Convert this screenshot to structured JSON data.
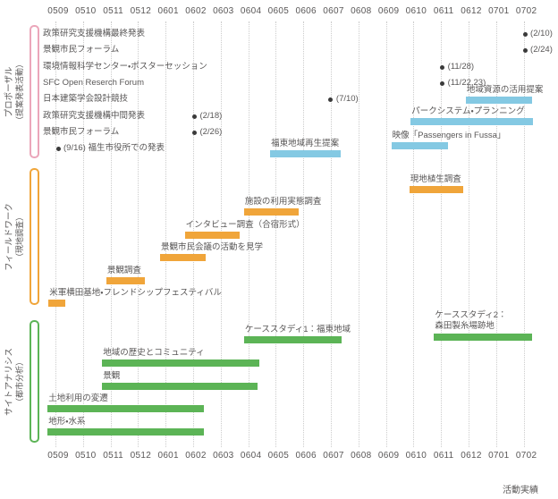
{
  "colors": {
    "bar_blue": "#84c9e3",
    "bar_orange": "#f0a53a",
    "bar_green": "#5cb456",
    "bracket_pink": "#eba6ba",
    "bracket_orange": "#f0a53a",
    "bracket_green": "#5cb456",
    "text": "#595757",
    "grid": "#cccccc",
    "marker": "#3a3a3a"
  },
  "footer": {
    "label": "活動実績"
  },
  "chart_data": {
    "type": "gantt",
    "x_axis": {
      "categories": [
        "0509",
        "0510",
        "0511",
        "0512",
        "0601",
        "0602",
        "0603",
        "0604",
        "0605",
        "0606",
        "0607",
        "0608",
        "0609",
        "0610",
        "0611",
        "0612",
        "0701",
        "0702"
      ],
      "shown_top": true,
      "shown_bottom": true,
      "grid": "dotted-vertical"
    },
    "groups": [
      {
        "id": "proposal",
        "name": "プロポーザル",
        "name_sub": "（提案発表活動）",
        "bar_color_key": "bar_blue",
        "bracket_color_key": "bracket_pink",
        "milestones": [
          {
            "row": 0,
            "label": "政策研究支援機構最終発表",
            "month": 16.95,
            "date": "(2/10)"
          },
          {
            "row": 1,
            "label": "景観市民フォーラム",
            "month": 16.95,
            "date": "(2/24)"
          },
          {
            "row": 2,
            "label": "環境情報科学センター・ポスターセッション",
            "month": 13.95,
            "date": "(11/28)"
          },
          {
            "row": 3,
            "label": "SFC Open Reserch Forum",
            "month": 13.95,
            "date": "(11/22,23)"
          },
          {
            "row": 4,
            "label": "日本建築学会設計競技",
            "month": 9.9,
            "date": "(7/10)"
          },
          {
            "row": 5,
            "label": "政策研究支援機構中間発表",
            "month": 4.95,
            "date": "(2/18)"
          },
          {
            "row": 6,
            "label": "景観市民フォーラム",
            "month": 4.95,
            "date": "(2/26)"
          },
          {
            "row": 7,
            "label": "",
            "month": 0,
            "date": "(9/16) 福生市役所での発表"
          }
        ],
        "bars": [
          {
            "row": 4.02,
            "label": "地域資源の活用提案",
            "start": 14.8,
            "end": 17.2
          },
          {
            "row": 5.33,
            "label": "パークシステム・プランニング",
            "start": 12.8,
            "end": 17.25
          },
          {
            "row": 6.83,
            "label": "映像「Passengers in Fussa」",
            "start": 12.1,
            "end": 14.15
          },
          {
            "row": 7.31,
            "label": "福東地域再生提案",
            "start": 7.7,
            "end": 10.25
          }
        ]
      },
      {
        "id": "fieldwork",
        "name": "フィールドワーク",
        "name_sub": "（現地調査）",
        "bar_color_key": "bar_orange",
        "bracket_color_key": "bracket_orange",
        "milestones": [],
        "bars": [
          {
            "row": 0,
            "label": "現地植生調査",
            "start": 12.75,
            "end": 14.7
          },
          {
            "row": 1,
            "label": "施設の利用実態調査",
            "start": 6.75,
            "end": 8.75
          },
          {
            "row": 2,
            "label": "インタビュー調査（合宿形式）",
            "start": 4.6,
            "end": 6.6
          },
          {
            "row": 3,
            "label": "景観市民会議の活動を見学",
            "start": 3.7,
            "end": 5.35
          },
          {
            "row": 4,
            "label": "景観調査",
            "start": 1.75,
            "end": 3.15
          },
          {
            "row": 5,
            "label": "米軍横田基地・フレンドシップフェスティバル",
            "start": -0.35,
            "end": 0.25
          }
        ]
      },
      {
        "id": "site_analysis",
        "name": "サイトアナリシス",
        "name_sub": "（都市分析）",
        "bar_color_key": "bar_green",
        "bracket_color_key": "bracket_green",
        "milestones": [],
        "bars": [
          {
            "row": 0,
            "label": "ケーススタディ1：福東地域",
            "start": 6.75,
            "end": 10.3
          },
          {
            "row": -0.12,
            "label_lines": [
              "ケーススタディ2：",
              "森田製糸場跡地"
            ],
            "start": 13.65,
            "end": 17.2
          },
          {
            "row": 1,
            "label": "地域の歴史とコミュニティ",
            "start": 1.6,
            "end": 7.3
          },
          {
            "row": 2,
            "label": "景観",
            "start": 1.6,
            "end": 7.25
          },
          {
            "row": 3,
            "label": "土地利用の変遷",
            "start": -0.38,
            "end": 5.3
          },
          {
            "row": 4,
            "label": "地形・水系",
            "start": -0.38,
            "end": 5.3
          }
        ]
      }
    ]
  }
}
